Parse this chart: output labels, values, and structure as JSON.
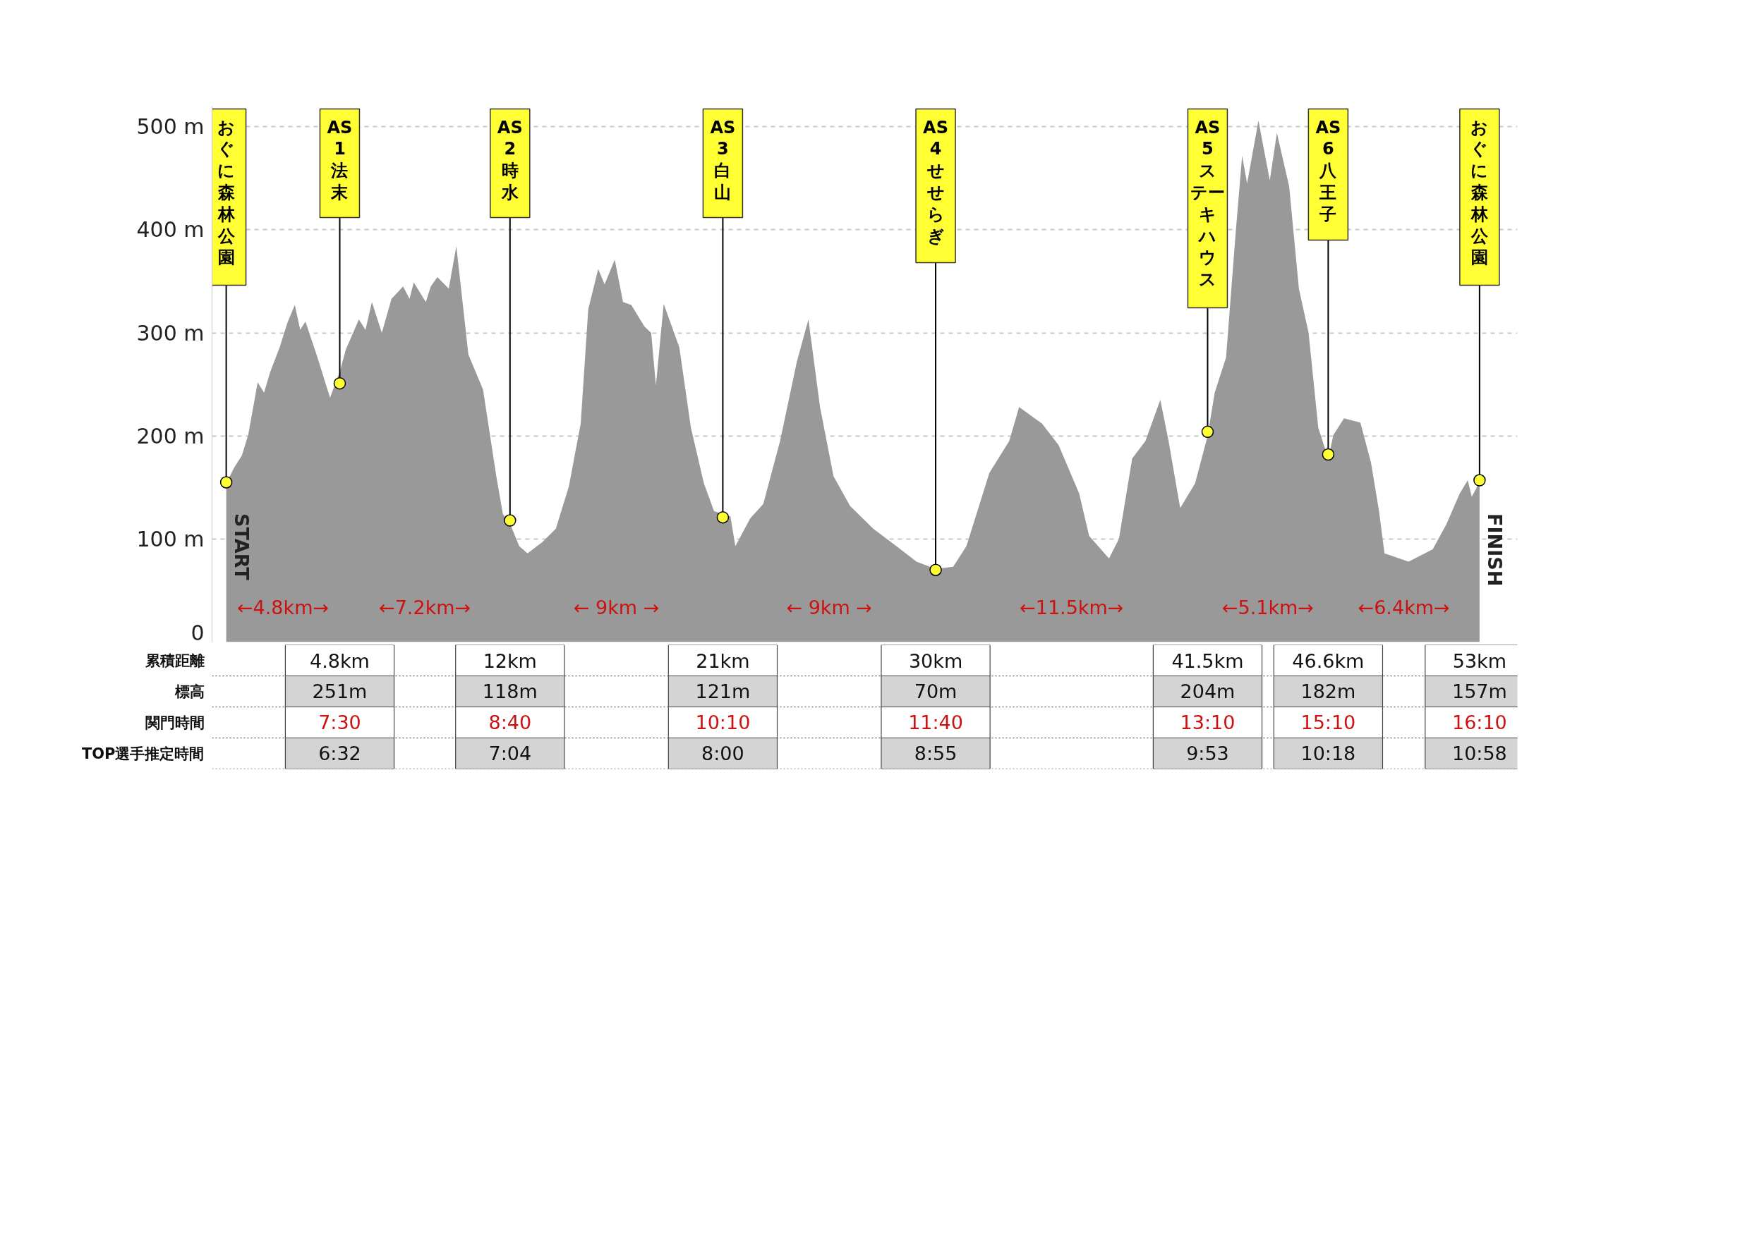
{
  "chart_data": {
    "type": "area",
    "xlim": [
      -0.6,
      54.6
    ],
    "ylim": [
      0,
      520
    ],
    "yticks": [
      0,
      {
        "value": 100,
        "label": "100 m"
      },
      {
        "value": 200,
        "label": "200 m"
      },
      {
        "value": 300,
        "label": "300 m"
      },
      {
        "value": 400,
        "label": "400 m"
      },
      {
        "value": 500,
        "label": "500 m"
      }
    ],
    "grid": "y",
    "xticks": [
      {
        "value": 4.8,
        "label": "4.8km"
      },
      {
        "value": 12,
        "label": "12km"
      },
      {
        "value": 21,
        "label": "21km"
      },
      {
        "value": 30,
        "label": "30km"
      },
      {
        "value": 41.5,
        "label": "41.5km"
      },
      {
        "value": 46.6,
        "label": "46.6km"
      },
      {
        "value": 53,
        "label": "53km"
      }
    ],
    "series": [
      {
        "color": "#999999",
        "x": [
          0,
          0.33,
          0.66,
          0.93,
          1.33,
          1.6,
          1.86,
          2.26,
          2.59,
          2.9,
          3.13,
          3.35,
          3.86,
          4.39,
          4.8,
          5.06,
          5.61,
          5.89,
          6.16,
          6.58,
          6.99,
          7.48,
          7.75,
          7.93,
          8.44,
          8.65,
          8.93,
          9.41,
          9.73,
          9.96,
          10.24,
          10.86,
          11.42,
          11.7,
          12.0,
          12.39,
          12.74,
          13.37,
          13.94,
          14.49,
          14.99,
          15.31,
          15.73,
          16.0,
          16.43,
          16.78,
          17.13,
          17.69,
          17.97,
          18.17,
          18.5,
          19.16,
          19.65,
          20.2,
          20.63,
          21.32,
          21.53,
          22.16,
          22.71,
          23.42,
          24.13,
          24.62,
          25.11,
          25.68,
          26.38,
          27.36,
          28.34,
          29.19,
          30.0,
          30.74,
          31.3,
          32.27,
          33.11,
          33.53,
          34.5,
          35.2,
          36.07,
          36.49,
          37.33,
          37.75,
          38.31,
          38.87,
          39.5,
          39.85,
          40.34,
          40.97,
          41.5,
          41.8,
          42.28,
          42.69,
          42.96,
          43.17,
          43.65,
          44.13,
          44.43,
          44.95,
          45.36,
          45.77,
          46.18,
          46.6,
          46.82,
          47.27,
          47.96,
          48.41,
          48.75,
          48.98,
          50.0,
          51.02,
          51.59,
          52.16,
          52.5,
          52.67,
          53.0
        ],
        "values": [
          154,
          169,
          181,
          201,
          252,
          242,
          262,
          286,
          310,
          327,
          303,
          311,
          276,
          237,
          262,
          284,
          313,
          303,
          330,
          300,
          333,
          345,
          333,
          349,
          330,
          345,
          354,
          343,
          384,
          337,
          279,
          245,
          161,
          124,
          115,
          93,
          86,
          97,
          110,
          151,
          212,
          323,
          362,
          347,
          371,
          330,
          327,
          306,
          300,
          249,
          328,
          286,
          208,
          154,
          127,
          122,
          93,
          120,
          134,
          195,
          272,
          313,
          228,
          161,
          132,
          110,
          93,
          78,
          71,
          73,
          93,
          164,
          195,
          228,
          212,
          191,
          144,
          103,
          81,
          100,
          178,
          195,
          235,
          195,
          130,
          154,
          200,
          242,
          276,
          398,
          472,
          445,
          506,
          448,
          494,
          442,
          343,
          300,
          208,
          178,
          201,
          217,
          213,
          174,
          127,
          86,
          78,
          90,
          114,
          144,
          157,
          141,
          155
        ]
      },
      {
        "type": "scatter",
        "color": "#ffff33",
        "marker": "circle",
        "x": [
          0,
          4.8,
          12,
          21,
          30,
          41.5,
          46.6,
          53
        ],
        "values": [
          155,
          251,
          118,
          121,
          70,
          204,
          182,
          157
        ]
      }
    ],
    "annotations": [
      {
        "text": "おぐに森林公園",
        "x": 0,
        "y": 155
      },
      {
        "text": "AS 1 法末",
        "x": 4.8,
        "y": 251
      },
      {
        "text": "AS 2 時水",
        "x": 12,
        "y": 118
      },
      {
        "text": "AS 3 白山",
        "x": 21,
        "y": 121
      },
      {
        "text": "AS 4 せせらぎ",
        "x": 30,
        "y": 70
      },
      {
        "text": "AS 5 ステーキハウス",
        "x": 41.5,
        "y": 204
      },
      {
        "text": "AS 6 八王子",
        "x": 46.6,
        "y": 182
      },
      {
        "text": "おぐに森林公園",
        "x": 53,
        "y": 157
      },
      "←4.8km→",
      "←7.2km→",
      "← 9km →",
      "← 9km →",
      "←11.5km→",
      "←5.1km→",
      "←6.4km→",
      {
        "text": "START",
        "x": 0
      },
      {
        "text": "FINISH",
        "x": 53
      },
      "累積距離",
      "標高",
      "251m",
      "118m",
      "121m",
      "70m",
      "204m",
      "182m",
      "157m",
      "関門時間",
      "7:30",
      "8:40",
      "10:10",
      "11:40",
      "13:10",
      "15:10",
      "16:10",
      "TOP選手推定時間",
      "6:32",
      "7:04",
      "8:00",
      "8:55",
      "9:53",
      "10:18",
      "10:58"
    ]
  }
}
